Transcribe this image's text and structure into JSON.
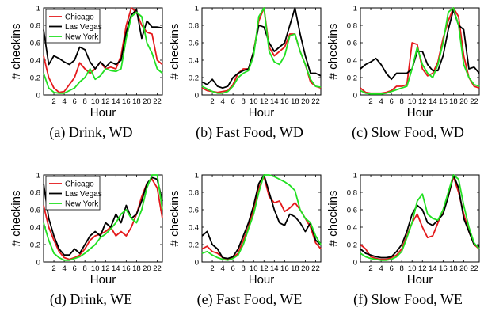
{
  "figure": {
    "ylabel": "# checkins",
    "xlabel": "Hour",
    "series_colors": {
      "Chicago": "#e41a1c",
      "Las Vegas": "#000000",
      "New York": "#22e022"
    }
  },
  "chart_data": [
    {
      "type": "line",
      "caption": "(a) Drink, WD",
      "xlabel": "Hour",
      "ylabel": "# checkins",
      "xlim": [
        0,
        23
      ],
      "ylim": [
        0,
        1
      ],
      "xticks": [
        2,
        4,
        6,
        8,
        10,
        12,
        14,
        16,
        18,
        20,
        22
      ],
      "xtick_labels": [
        "2",
        "4",
        "6",
        "8",
        "10",
        "12",
        "14",
        "16",
        "18",
        "20",
        "22"
      ],
      "yticks": [
        0,
        0.2,
        0.4,
        0.6,
        0.8,
        1
      ],
      "ytick_labels": [
        "0",
        "0.2",
        "0.4",
        "0.6",
        "0.8",
        "1"
      ],
      "legend": {
        "show": true,
        "position": "top-left"
      },
      "x": [
        0,
        1,
        2,
        3,
        4,
        5,
        6,
        7,
        8,
        9,
        10,
        11,
        12,
        13,
        14,
        15,
        16,
        17,
        18,
        19,
        20,
        21,
        22,
        23
      ],
      "series": [
        {
          "name": "Chicago",
          "color": "#e41a1c",
          "values": [
            0.45,
            0.2,
            0.08,
            0.03,
            0.04,
            0.12,
            0.2,
            0.37,
            0.3,
            0.25,
            0.3,
            0.38,
            0.3,
            0.32,
            0.3,
            0.45,
            0.8,
            1.0,
            0.95,
            0.8,
            0.72,
            0.7,
            0.4,
            0.35
          ]
        },
        {
          "name": "Las Vegas",
          "color": "#000000",
          "values": [
            0.75,
            0.35,
            0.45,
            0.42,
            0.38,
            0.35,
            0.4,
            0.55,
            0.52,
            0.38,
            0.3,
            0.38,
            0.32,
            0.38,
            0.35,
            0.4,
            0.72,
            0.92,
            0.98,
            0.65,
            0.85,
            0.78,
            0.78,
            0.77
          ]
        },
        {
          "name": "New York",
          "color": "#22e022",
          "values": [
            0.25,
            0.08,
            0.03,
            0.02,
            0.02,
            0.05,
            0.08,
            0.15,
            0.2,
            0.3,
            0.18,
            0.22,
            0.3,
            0.28,
            0.27,
            0.3,
            0.65,
            0.9,
            0.95,
            0.9,
            0.6,
            0.48,
            0.3,
            0.25
          ]
        }
      ]
    },
    {
      "type": "line",
      "caption": "(b) Fast Food, WD",
      "xlabel": "Hour",
      "ylabel": "# checkins",
      "xlim": [
        0,
        23
      ],
      "ylim": [
        0,
        1
      ],
      "xticks": [
        2,
        4,
        6,
        8,
        10,
        12,
        14,
        16,
        18,
        20,
        22
      ],
      "xtick_labels": [
        "2",
        "4",
        "6",
        "8",
        "10",
        "12",
        "14",
        "16",
        "18",
        "20",
        "22"
      ],
      "yticks": [
        0,
        0.2,
        0.4,
        0.6,
        0.8,
        1
      ],
      "ytick_labels": [
        "0",
        "0.2",
        "0.4",
        "0.6",
        "0.8",
        "1"
      ],
      "legend": {
        "show": false
      },
      "x": [
        0,
        1,
        2,
        3,
        4,
        5,
        6,
        7,
        8,
        9,
        10,
        11,
        12,
        13,
        14,
        15,
        16,
        17,
        18,
        19,
        20,
        21,
        22,
        23
      ],
      "series": [
        {
          "name": "Chicago",
          "color": "#e41a1c",
          "values": [
            0.08,
            0.05,
            0.04,
            0.03,
            0.04,
            0.05,
            0.12,
            0.25,
            0.3,
            0.3,
            0.5,
            0.85,
            1.0,
            0.55,
            0.45,
            0.5,
            0.55,
            0.7,
            0.7,
            0.5,
            0.35,
            0.15,
            0.1,
            0.08
          ]
        },
        {
          "name": "Las Vegas",
          "color": "#000000",
          "values": [
            0.15,
            0.12,
            0.18,
            0.1,
            0.08,
            0.1,
            0.2,
            0.25,
            0.28,
            0.3,
            0.5,
            0.8,
            0.78,
            0.6,
            0.5,
            0.55,
            0.6,
            0.8,
            1.0,
            0.7,
            0.45,
            0.25,
            0.25,
            0.22
          ]
        },
        {
          "name": "New York",
          "color": "#22e022",
          "values": [
            0.1,
            0.07,
            0.04,
            0.02,
            0.02,
            0.04,
            0.1,
            0.2,
            0.25,
            0.28,
            0.45,
            0.9,
            1.0,
            0.5,
            0.38,
            0.35,
            0.45,
            0.68,
            0.7,
            0.5,
            0.35,
            0.18,
            0.1,
            0.09
          ]
        }
      ]
    },
    {
      "type": "line",
      "caption": "(c) Slow Food, WD",
      "xlabel": "Hour",
      "ylabel": "# checkins",
      "xlim": [
        0,
        23
      ],
      "ylim": [
        0,
        1
      ],
      "xticks": [
        2,
        4,
        6,
        8,
        10,
        12,
        14,
        16,
        18,
        20,
        22
      ],
      "xtick_labels": [
        "2",
        "4",
        "6",
        "8",
        "10",
        "12",
        "14",
        "16",
        "18",
        "20",
        "22"
      ],
      "yticks": [
        0,
        0.2,
        0.4,
        0.6,
        0.8,
        1
      ],
      "ytick_labels": [
        "0",
        "0.2",
        "0.4",
        "0.6",
        "0.8",
        "1"
      ],
      "legend": {
        "show": false
      },
      "x": [
        0,
        1,
        2,
        3,
        4,
        5,
        6,
        7,
        8,
        9,
        10,
        11,
        12,
        13,
        14,
        15,
        16,
        17,
        18,
        19,
        20,
        21,
        22,
        23
      ],
      "series": [
        {
          "name": "Chicago",
          "color": "#e41a1c",
          "values": [
            0.08,
            0.03,
            0.02,
            0.02,
            0.02,
            0.03,
            0.05,
            0.1,
            0.1,
            0.12,
            0.6,
            0.58,
            0.3,
            0.22,
            0.25,
            0.38,
            0.65,
            0.85,
            1.0,
            0.9,
            0.45,
            0.2,
            0.1,
            0.08
          ]
        },
        {
          "name": "Las Vegas",
          "color": "#000000",
          "values": [
            0.3,
            0.35,
            0.38,
            0.42,
            0.35,
            0.25,
            0.18,
            0.25,
            0.25,
            0.25,
            0.3,
            0.5,
            0.5,
            0.35,
            0.28,
            0.28,
            0.45,
            0.75,
            0.98,
            0.8,
            0.75,
            0.3,
            0.32,
            0.25
          ]
        },
        {
          "name": "New York",
          "color": "#22e022",
          "values": [
            0.05,
            0.02,
            0.01,
            0.01,
            0.01,
            0.02,
            0.04,
            0.06,
            0.08,
            0.1,
            0.3,
            0.55,
            0.35,
            0.25,
            0.2,
            0.35,
            0.6,
            0.95,
            1.0,
            0.8,
            0.35,
            0.2,
            0.12,
            0.1
          ]
        }
      ]
    },
    {
      "type": "line",
      "caption": "(d) Drink, WE",
      "xlabel": "Hour",
      "ylabel": "# checkins",
      "xlim": [
        0,
        23
      ],
      "ylim": [
        0,
        1
      ],
      "xticks": [
        2,
        4,
        6,
        8,
        10,
        12,
        14,
        16,
        18,
        20,
        22
      ],
      "xtick_labels": [
        "2",
        "4",
        "6",
        "8",
        "10",
        "12",
        "14",
        "16",
        "18",
        "20",
        "22"
      ],
      "yticks": [
        0,
        0.2,
        0.4,
        0.6,
        0.8,
        1
      ],
      "ytick_labels": [
        "0",
        "0.2",
        "0.4",
        "0.6",
        "0.8",
        "1"
      ],
      "legend": {
        "show": true,
        "position": "top-left"
      },
      "x": [
        0,
        1,
        2,
        3,
        4,
        5,
        6,
        7,
        8,
        9,
        10,
        11,
        12,
        13,
        14,
        15,
        16,
        17,
        18,
        19,
        20,
        21,
        22,
        23
      ],
      "series": [
        {
          "name": "Chicago",
          "color": "#e41a1c",
          "values": [
            0.65,
            0.4,
            0.25,
            0.12,
            0.05,
            0.03,
            0.05,
            0.08,
            0.15,
            0.25,
            0.3,
            0.32,
            0.35,
            0.4,
            0.3,
            0.35,
            0.3,
            0.4,
            0.55,
            0.75,
            0.9,
            0.95,
            0.85,
            0.5
          ]
        },
        {
          "name": "Las Vegas",
          "color": "#000000",
          "values": [
            0.9,
            0.5,
            0.3,
            0.15,
            0.08,
            0.08,
            0.15,
            0.1,
            0.2,
            0.3,
            0.35,
            0.3,
            0.45,
            0.4,
            0.55,
            0.45,
            0.65,
            0.5,
            0.55,
            0.7,
            0.9,
            0.97,
            0.95,
            0.7
          ]
        },
        {
          "name": "New York",
          "color": "#22e022",
          "values": [
            0.45,
            0.25,
            0.1,
            0.05,
            0.02,
            0.02,
            0.04,
            0.06,
            0.1,
            0.15,
            0.2,
            0.28,
            0.32,
            0.38,
            0.45,
            0.55,
            0.6,
            0.5,
            0.45,
            0.6,
            0.85,
            1.0,
            1.0,
            0.6
          ]
        }
      ]
    },
    {
      "type": "line",
      "caption": "(e) Fast Food, WE",
      "xlabel": "Hour",
      "ylabel": "# checkins",
      "xlim": [
        0,
        23
      ],
      "ylim": [
        0,
        1
      ],
      "xticks": [
        2,
        4,
        6,
        8,
        10,
        12,
        14,
        16,
        18,
        20,
        22
      ],
      "xtick_labels": [
        "2",
        "4",
        "6",
        "8",
        "10",
        "12",
        "14",
        "16",
        "18",
        "20",
        "22"
      ],
      "yticks": [
        0,
        0.2,
        0.4,
        0.6,
        0.8,
        1
      ],
      "ytick_labels": [
        "0",
        "0.2",
        "0.4",
        "0.6",
        "0.8",
        "1"
      ],
      "legend": {
        "show": false
      },
      "x": [
        0,
        1,
        2,
        3,
        4,
        5,
        6,
        7,
        8,
        9,
        10,
        11,
        12,
        13,
        14,
        15,
        16,
        17,
        18,
        19,
        20,
        21,
        22,
        23
      ],
      "series": [
        {
          "name": "Chicago",
          "color": "#e41a1c",
          "values": [
            0.15,
            0.18,
            0.12,
            0.1,
            0.05,
            0.03,
            0.05,
            0.1,
            0.25,
            0.4,
            0.6,
            0.85,
            0.98,
            0.75,
            0.68,
            0.7,
            0.58,
            0.62,
            0.68,
            0.6,
            0.5,
            0.4,
            0.22,
            0.15
          ]
        },
        {
          "name": "Las Vegas",
          "color": "#000000",
          "values": [
            0.3,
            0.35,
            0.2,
            0.15,
            0.05,
            0.04,
            0.06,
            0.15,
            0.3,
            0.45,
            0.65,
            0.9,
            1.0,
            0.8,
            0.6,
            0.45,
            0.42,
            0.55,
            0.52,
            0.45,
            0.35,
            0.45,
            0.25,
            0.2
          ]
        },
        {
          "name": "New York",
          "color": "#22e022",
          "values": [
            0.1,
            0.12,
            0.08,
            0.05,
            0.03,
            0.02,
            0.04,
            0.08,
            0.2,
            0.38,
            0.55,
            0.8,
            1.0,
            1.0,
            0.98,
            0.95,
            0.92,
            0.88,
            0.82,
            0.6,
            0.5,
            0.45,
            0.3,
            0.2
          ]
        }
      ]
    },
    {
      "type": "line",
      "caption": "(f) Slow Food, WE",
      "xlabel": "Hour",
      "ylabel": "# checkins",
      "xlim": [
        0,
        23
      ],
      "ylim": [
        0,
        1
      ],
      "xticks": [
        2,
        4,
        6,
        8,
        10,
        12,
        14,
        16,
        18,
        20,
        22
      ],
      "xtick_labels": [
        "2",
        "4",
        "6",
        "8",
        "10",
        "12",
        "14",
        "16",
        "18",
        "20",
        "22"
      ],
      "yticks": [
        0,
        0.2,
        0.4,
        0.6,
        0.8,
        1
      ],
      "ytick_labels": [
        "0",
        "0.2",
        "0.4",
        "0.6",
        "0.8",
        "1"
      ],
      "legend": {
        "show": false
      },
      "x": [
        0,
        1,
        2,
        3,
        4,
        5,
        6,
        7,
        8,
        9,
        10,
        11,
        12,
        13,
        14,
        15,
        16,
        17,
        18,
        19,
        20,
        21,
        22,
        23
      ],
      "series": [
        {
          "name": "Chicago",
          "color": "#e41a1c",
          "values": [
            0.2,
            0.15,
            0.06,
            0.04,
            0.03,
            0.03,
            0.05,
            0.08,
            0.15,
            0.3,
            0.45,
            0.55,
            0.4,
            0.28,
            0.3,
            0.45,
            0.6,
            0.75,
            0.98,
            0.8,
            0.55,
            0.35,
            0.2,
            0.15
          ]
        },
        {
          "name": "Las Vegas",
          "color": "#000000",
          "values": [
            0.15,
            0.1,
            0.08,
            0.06,
            0.05,
            0.05,
            0.06,
            0.12,
            0.2,
            0.35,
            0.55,
            0.65,
            0.6,
            0.45,
            0.42,
            0.48,
            0.55,
            0.75,
            1.0,
            0.85,
            0.5,
            0.35,
            0.2,
            0.18
          ]
        },
        {
          "name": "New York",
          "color": "#22e022",
          "values": [
            0.1,
            0.06,
            0.04,
            0.03,
            0.02,
            0.02,
            0.03,
            0.06,
            0.12,
            0.28,
            0.45,
            0.7,
            0.78,
            0.55,
            0.5,
            0.48,
            0.6,
            0.8,
            1.0,
            0.95,
            0.65,
            0.4,
            0.22,
            0.15
          ]
        }
      ]
    }
  ]
}
